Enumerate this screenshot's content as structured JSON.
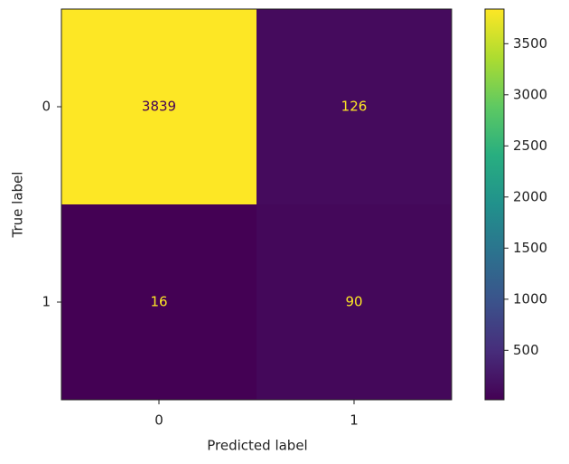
{
  "chart_data": {
    "type": "heatmap",
    "x_categories": [
      "0",
      "1"
    ],
    "y_categories": [
      "0",
      "1"
    ],
    "values": [
      [
        3839,
        126
      ],
      [
        16,
        90
      ]
    ],
    "xlabel": "Predicted label",
    "ylabel": "True label",
    "cmap": "viridis",
    "clim": [
      16,
      3839
    ],
    "cticks": [
      500,
      1000,
      1500,
      2000,
      2500,
      3000,
      3500
    ]
  }
}
